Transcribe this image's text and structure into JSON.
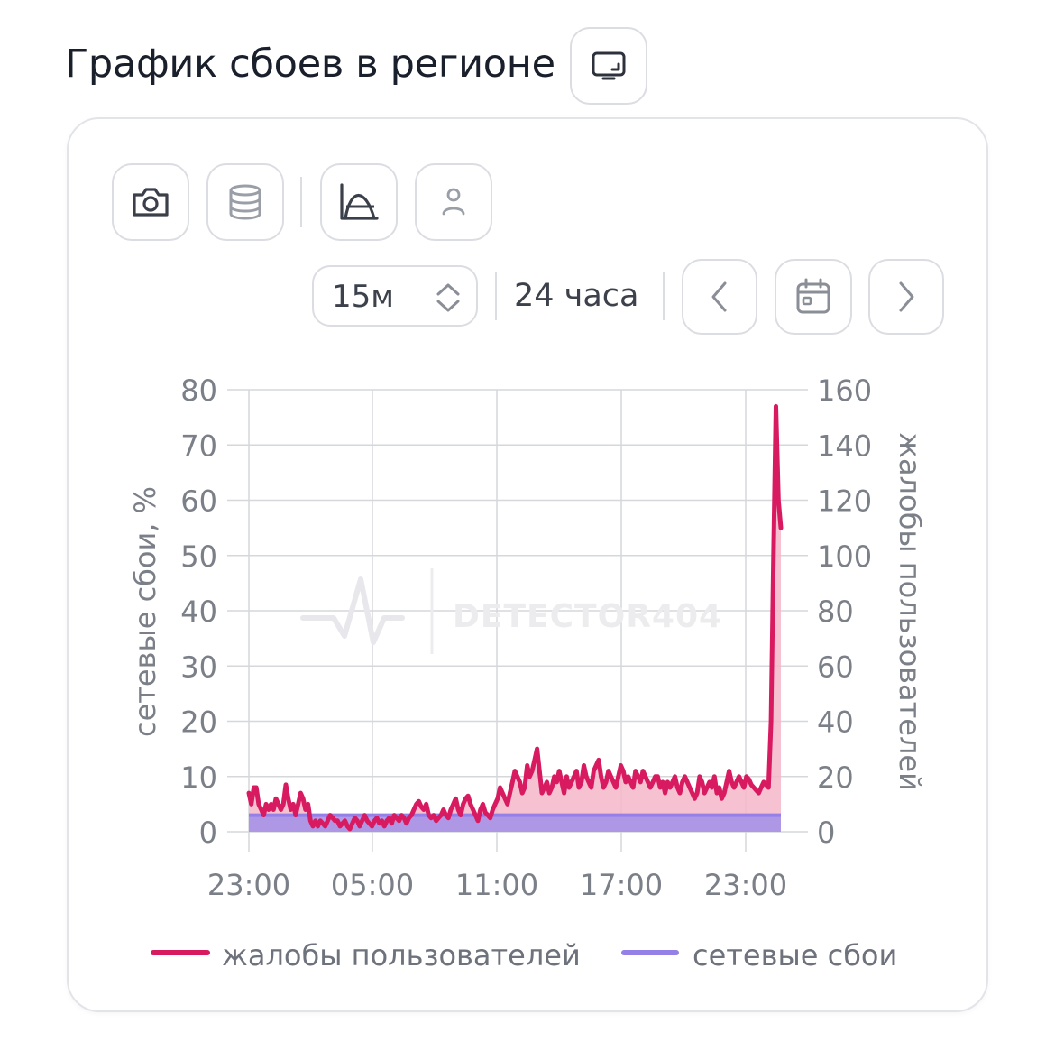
{
  "header": {
    "title": "График сбоев в регионе",
    "fullscreen_icon": "screen-icon"
  },
  "toolbar": {
    "icons": [
      "camera-icon",
      "database-icon",
      "curve-chart-icon",
      "user-icon"
    ]
  },
  "controls": {
    "interval": {
      "value": "15м",
      "icon": "updown-chevron-icon"
    },
    "period": "24 часа",
    "prev_icon": "chevron-left-icon",
    "calendar_icon": "calendar-icon",
    "next_icon": "chevron-right-icon"
  },
  "watermark": {
    "text": "DETECTOR404"
  },
  "colors": {
    "complaints": "#d81b60",
    "complaints_fill": "#f4b7c9",
    "network": "#9480e6",
    "network_fill": "#a693e8",
    "grid": "#d6d7db",
    "text_muted": "#7b7f88"
  },
  "chart_data": {
    "type": "line",
    "x_labels": [
      "23:00",
      "05:00",
      "11:00",
      "17:00",
      "23:00"
    ],
    "x_start": "23:00",
    "x_step_minutes": 15,
    "y_left": {
      "label": "сетевые сбои, %",
      "ticks": [
        "0",
        "10",
        "20",
        "30",
        "40",
        "50",
        "60",
        "70",
        "80"
      ],
      "lim": [
        0,
        80
      ]
    },
    "y_right": {
      "label": "жалобы пользователей",
      "ticks": [
        "0",
        "20",
        "40",
        "60",
        "80",
        "100",
        "120",
        "140",
        "160"
      ],
      "lim": [
        0,
        160
      ]
    },
    "grid": true,
    "legend_position": "bottom",
    "series": [
      {
        "name": "жалобы пользователей",
        "axis": "right",
        "values": [
          14,
          10,
          16,
          16,
          10,
          8,
          6,
          10,
          8,
          10,
          8,
          12,
          10,
          8,
          10,
          17,
          12,
          8,
          10,
          6,
          10,
          14,
          12,
          8,
          10,
          4,
          2,
          4,
          2,
          4,
          3,
          2,
          4,
          6,
          5,
          4,
          4,
          2,
          3,
          4,
          2,
          1,
          3,
          5,
          4,
          2,
          4,
          6,
          4,
          3,
          2,
          4,
          5,
          3,
          4,
          2,
          4,
          5,
          3,
          6,
          5,
          4,
          6,
          5,
          3,
          5,
          6,
          8,
          10,
          11,
          9,
          8,
          10,
          6,
          5,
          6,
          4,
          5,
          6,
          8,
          6,
          5,
          8,
          10,
          12,
          8,
          6,
          10,
          12,
          13,
          10,
          8,
          6,
          4,
          8,
          10,
          7,
          6,
          5,
          8,
          10,
          12,
          16,
          14,
          12,
          10,
          14,
          18,
          22,
          20,
          18,
          14,
          16,
          24,
          20,
          22,
          26,
          30,
          22,
          14,
          16,
          18,
          14,
          16,
          20,
          18,
          22,
          18,
          14,
          20,
          16,
          18,
          20,
          22,
          16,
          18,
          24,
          20,
          18,
          16,
          22,
          24,
          26,
          20,
          16,
          18,
          22,
          20,
          18,
          16,
          20,
          24,
          22,
          18,
          20,
          18,
          16,
          22,
          20,
          18,
          22,
          20,
          18,
          16,
          18,
          20,
          20,
          16,
          18,
          14,
          18,
          16,
          18,
          20,
          16,
          14,
          18,
          20,
          18,
          16,
          14,
          12,
          14,
          20,
          18,
          14,
          16,
          18,
          16,
          20,
          14,
          16,
          12,
          14,
          18,
          22,
          18,
          16,
          18,
          20,
          18,
          16,
          20,
          19,
          17,
          16,
          15,
          14,
          16,
          18,
          17,
          16,
          40,
          100,
          154,
          120,
          110
        ],
        "visible_from": 0
      },
      {
        "name": "сетевые сбои",
        "axis": "left",
        "values": [
          3,
          3,
          3,
          3,
          3,
          3,
          3,
          3,
          3,
          3,
          3,
          3,
          3,
          3,
          3,
          3,
          3,
          3,
          3,
          3,
          3,
          3,
          3,
          3,
          3,
          3,
          3,
          3,
          3,
          3,
          3,
          3,
          3,
          3,
          3,
          3,
          3,
          3,
          3,
          3,
          3,
          3,
          3,
          3,
          3,
          3,
          3,
          3,
          3,
          3,
          3,
          3,
          3,
          3,
          3,
          3,
          3,
          3,
          3,
          3,
          3,
          3,
          3,
          3,
          3,
          3,
          3,
          3,
          3,
          3,
          3,
          3,
          3,
          3,
          3,
          3,
          3,
          3,
          3,
          3,
          3,
          3,
          3,
          3,
          3,
          3,
          3,
          3,
          3,
          3,
          3,
          3,
          3,
          3,
          3,
          3,
          3,
          3,
          3,
          3,
          3,
          3,
          3,
          3,
          3,
          3,
          3,
          3,
          3,
          3,
          3,
          3,
          3,
          3,
          3,
          3,
          3,
          3,
          3,
          3,
          3,
          3,
          3,
          3,
          3,
          3,
          3,
          3,
          3,
          3,
          3,
          3,
          3,
          3,
          3,
          3,
          3,
          3,
          3,
          3,
          3,
          3,
          3,
          3,
          3,
          3,
          3,
          3,
          3,
          3,
          3,
          3,
          3,
          3,
          3,
          3,
          3,
          3,
          3,
          3,
          3,
          3,
          3,
          3,
          3,
          3,
          3,
          3,
          3,
          3,
          3,
          3,
          3,
          3,
          3,
          3,
          3,
          3,
          3,
          3,
          3,
          3,
          3,
          3,
          3,
          3,
          3,
          3,
          3,
          3,
          3,
          3,
          3,
          3,
          3,
          3,
          3,
          3,
          3,
          3,
          3,
          3,
          3,
          3,
          3,
          3,
          3,
          3,
          3,
          3,
          3,
          3,
          3,
          3,
          3,
          3,
          3,
          3,
          3,
          3,
          3,
          3,
          3,
          3,
          3,
          3,
          3,
          3,
          3,
          3,
          3,
          3
        ]
      }
    ]
  }
}
